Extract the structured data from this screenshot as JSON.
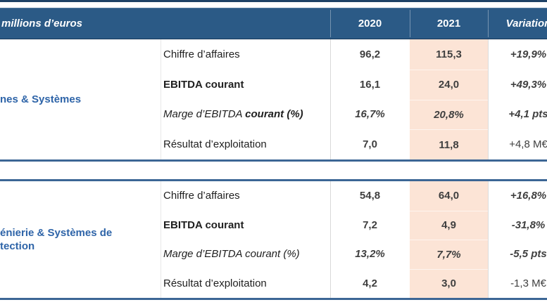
{
  "table": {
    "unit_label": "millions d’euros",
    "columns": {
      "y2020": "2020",
      "y2021": "2021",
      "variation": "Variation"
    },
    "colors": {
      "header_bg": "#2b5a86",
      "header_text": "#ffffff",
      "accent_2021_bg": "#fce4d6",
      "section_border": "#3c6695",
      "top_rule": "#1d4166",
      "segment_label": "#2e64a8",
      "metric_text": "#1f1f1f",
      "value_text": "#3f3f3f",
      "divider": "#d9d9d9"
    },
    "sections": [
      {
        "segment_label_lines": [
          "nes & Systèmes"
        ],
        "rows": [
          {
            "label": "Chiffre d’affaires",
            "label_style": "normal",
            "v2020": "96,2",
            "v2021": "115,3",
            "values_style": "bold",
            "variation": "+19,9%",
            "variation_style": "bold-italic"
          },
          {
            "label": "EBITDA courant",
            "label_style": "bold",
            "v2020": "16,1",
            "v2021": "24,0",
            "values_style": "bold",
            "variation": "+49,3%",
            "variation_style": "bold-italic"
          },
          {
            "label": "Marge d’EBITDA ",
            "label_bold_part": "courant (%)",
            "label_style": "italic",
            "v2020": "16,7%",
            "v2021": "20,8%",
            "values_style": "bold-italic",
            "variation": "+4,1 pts",
            "variation_style": "bold-italic"
          },
          {
            "label": "Résultat d’exploitation",
            "label_style": "normal",
            "v2020": "7,0",
            "v2021": "11,8",
            "values_style": "bold",
            "variation": "+4,8 M€",
            "variation_style": "normal"
          }
        ]
      },
      {
        "segment_label_lines": [
          "énierie & Systèmes de",
          "tection"
        ],
        "rows": [
          {
            "label": "Chiffre d’affaires",
            "label_style": "normal",
            "v2020": "54,8",
            "v2021": "64,0",
            "values_style": "bold",
            "variation": "+16,8%",
            "variation_style": "bold-italic"
          },
          {
            "label": "EBITDA courant",
            "label_style": "bold",
            "v2020": "7,2",
            "v2021": "4,9",
            "values_style": "bold",
            "variation": "-31,8%",
            "variation_style": "bold-italic"
          },
          {
            "label": "Marge d’EBITDA courant (%)",
            "label_style": "italic",
            "v2020": "13,2%",
            "v2021": "7,7%",
            "values_style": "bold-italic",
            "variation": "-5,5 pts",
            "variation_style": "bold-italic"
          },
          {
            "label": "Résultat d’exploitation",
            "label_style": "normal",
            "v2020": "4,2",
            "v2021": "3,0",
            "values_style": "bold",
            "variation": "-1,3 M€",
            "variation_style": "normal"
          }
        ]
      }
    ]
  }
}
